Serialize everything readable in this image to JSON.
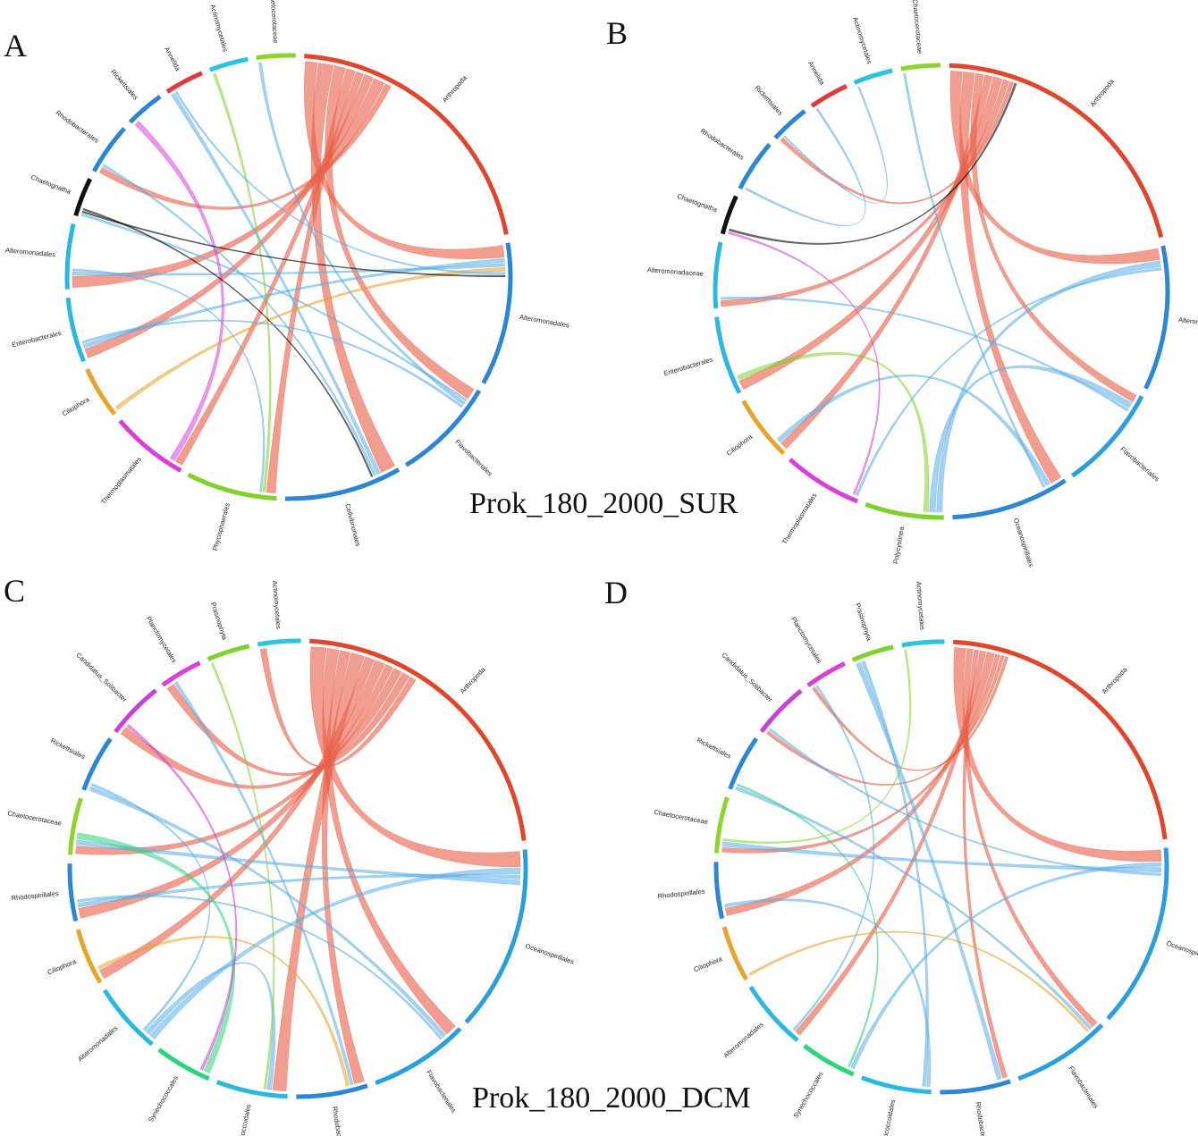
{
  "captions": {
    "top": "Prok_180_2000_SUR",
    "bottom": "Prok_180_2000_DCM"
  },
  "panels": [
    {
      "letter": "A",
      "segments": [
        {
          "name": "Arthropoda",
          "color": "#e0462b",
          "weight": 22
        },
        {
          "name": "Alteromonadales",
          "color": "#2b86d6",
          "weight": 11
        },
        {
          "name": "Flavobacteriales",
          "color": "#2b86d6",
          "weight": 8
        },
        {
          "name": "Cellvibrionales",
          "color": "#2b86d6",
          "weight": 9
        },
        {
          "name": "Phycisphaerales",
          "color": "#7fd22b",
          "weight": 7
        },
        {
          "name": "Thermoplasmatales",
          "color": "#d93fd9",
          "weight": 6
        },
        {
          "name": "Ciliophora",
          "color": "#e8a32b",
          "weight": 4
        },
        {
          "name": "Enterobacterales",
          "color": "#2bb8e0",
          "weight": 5
        },
        {
          "name": "Alteromonadales",
          "color": "#2bb8e0",
          "weight": 5
        },
        {
          "name": "Chaetognatha",
          "color": "#111111",
          "weight": 3
        },
        {
          "name": "Rhodobacterales",
          "color": "#2b86d6",
          "weight": 4
        },
        {
          "name": "Rickettsiales",
          "color": "#2b86d6",
          "weight": 3
        },
        {
          "name": "Annelida",
          "color": "#e03a3a",
          "weight": 3
        },
        {
          "name": "Actinomycetales",
          "color": "#2bc4e0",
          "weight": 3
        },
        {
          "name": "Chaetocerotaceae",
          "color": "#8ed42b",
          "weight": 3
        }
      ]
    },
    {
      "letter": "B",
      "segments": [
        {
          "name": "Arthropoda",
          "color": "#e0462b",
          "weight": 22
        },
        {
          "name": "Alteromonadales",
          "color": "#2b86d6",
          "weight": 11
        },
        {
          "name": "Flavobacteriales",
          "color": "#2b9ee0",
          "weight": 8
        },
        {
          "name": "Oceanospirillales",
          "color": "#2b86d6",
          "weight": 9
        },
        {
          "name": "Polycystinea",
          "color": "#7fd22b",
          "weight": 6
        },
        {
          "name": "Thermoplasmatales",
          "color": "#d93fd9",
          "weight": 6
        },
        {
          "name": "Ciliophora",
          "color": "#e8a32b",
          "weight": 5
        },
        {
          "name": "Enterobacterales",
          "color": "#2bb8e0",
          "weight": 6
        },
        {
          "name": "Alteromonadaceae",
          "color": "#2bb8e0",
          "weight": 5
        },
        {
          "name": "Chaetognatha",
          "color": "#111111",
          "weight": 3
        },
        {
          "name": "Rhodobacterales",
          "color": "#2b86d6",
          "weight": 4
        },
        {
          "name": "Rickettsiales",
          "color": "#2b86d6",
          "weight": 3
        },
        {
          "name": "Annelida",
          "color": "#e03a3a",
          "weight": 3
        },
        {
          "name": "Actinomycetales",
          "color": "#2bc4e0",
          "weight": 3
        },
        {
          "name": "Chaetocerotaceae",
          "color": "#8ed42b",
          "weight": 3
        }
      ]
    },
    {
      "letter": "C",
      "segments": [
        {
          "name": "Arthropoda",
          "color": "#e0462b",
          "weight": 22
        },
        {
          "name": "Oceanospirillales",
          "color": "#2b9ee0",
          "weight": 13
        },
        {
          "name": "Flavobacteriales",
          "color": "#2b9ee0",
          "weight": 7
        },
        {
          "name": "Rhodobacterales",
          "color": "#2b86d6",
          "weight": 5
        },
        {
          "name": "Dehalococcoidales",
          "color": "#2bb8e0",
          "weight": 5
        },
        {
          "name": "Synechococcales",
          "color": "#2bd67a",
          "weight": 4
        },
        {
          "name": "Alteromonadales",
          "color": "#2bb8e0",
          "weight": 5
        },
        {
          "name": "Ciliophora",
          "color": "#e8a32b",
          "weight": 4
        },
        {
          "name": "Rhodospirillales",
          "color": "#2b86d6",
          "weight": 4
        },
        {
          "name": "Chaetocerotaceae",
          "color": "#8ed42b",
          "weight": 4
        },
        {
          "name": "Rickettsiales",
          "color": "#2b86d6",
          "weight": 4
        },
        {
          "name": "Candidatus_Solibacter",
          "color": "#c93fd9",
          "weight": 4
        },
        {
          "name": "Planctomycetales",
          "color": "#d93fd9",
          "weight": 3
        },
        {
          "name": "Prasinophyta",
          "color": "#7fd22b",
          "weight": 3
        },
        {
          "name": "Actinomycetales",
          "color": "#2bc4e0",
          "weight": 3
        }
      ]
    },
    {
      "letter": "D",
      "segments": [
        {
          "name": "Arthropoda",
          "color": "#e0462b",
          "weight": 22
        },
        {
          "name": "Oceanospirillales",
          "color": "#2b9ee0",
          "weight": 13
        },
        {
          "name": "Flavobacteriales",
          "color": "#2b9ee0",
          "weight": 7
        },
        {
          "name": "Rhodobacterales",
          "color": "#2b86d6",
          "weight": 5
        },
        {
          "name": "Dehalococcoidales",
          "color": "#2bb8e0",
          "weight": 5
        },
        {
          "name": "Synechococcales",
          "color": "#2bd67a",
          "weight": 4
        },
        {
          "name": "Alteromonadales",
          "color": "#2bb8e0",
          "weight": 5
        },
        {
          "name": "Ciliophora",
          "color": "#e8a32b",
          "weight": 4
        },
        {
          "name": "Rhodospirillales",
          "color": "#2b86d6",
          "weight": 4
        },
        {
          "name": "Chaetocerotaceae",
          "color": "#8ed42b",
          "weight": 4
        },
        {
          "name": "Rickettsiales",
          "color": "#2b86d6",
          "weight": 4
        },
        {
          "name": "Candidatus_Solibacter",
          "color": "#c93fd9",
          "weight": 4
        },
        {
          "name": "Planctomycetales",
          "color": "#d93fd9",
          "weight": 3
        },
        {
          "name": "Prasinophyta",
          "color": "#7fd22b",
          "weight": 3
        },
        {
          "name": "Actinomycetales",
          "color": "#2bc4e0",
          "weight": 3
        }
      ]
    }
  ]
}
